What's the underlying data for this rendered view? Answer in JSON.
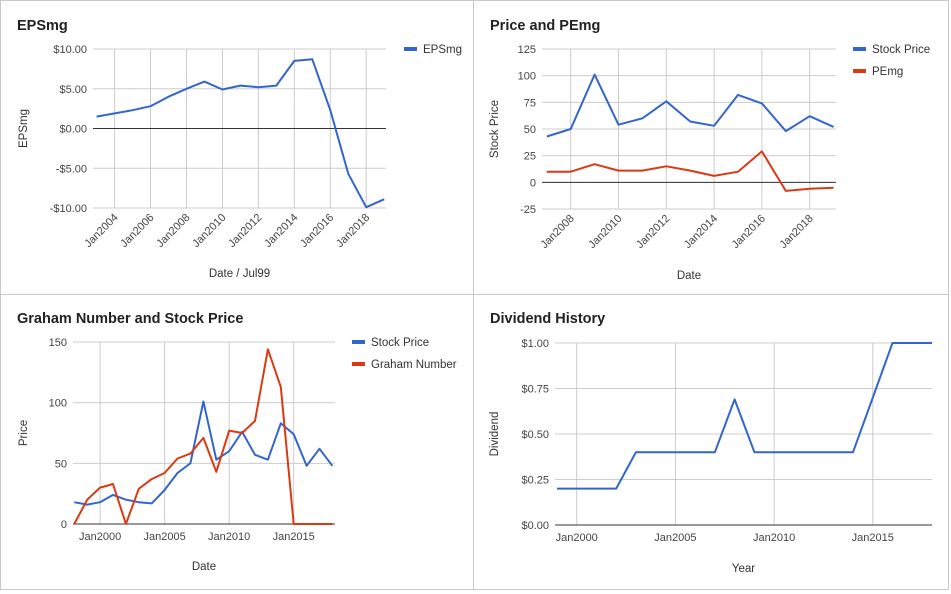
{
  "chart_data": [
    {
      "type": "line",
      "title": "EPSmg",
      "xlabel": "Date / Jul99",
      "ylabel": "EPSmg",
      "x_tick_labels": [
        "Jan2004",
        "Jan2006",
        "Jan2008",
        "Jan2010",
        "Jan2012",
        "Jan2014",
        "Jan2016",
        "Jan2018"
      ],
      "y_tick_labels": [
        "$10.00",
        "$5.00",
        "$0.00",
        "-$5.00",
        "-$10.00"
      ],
      "ylim": [
        -10,
        10
      ],
      "xlim": [
        2002.8,
        2019.1
      ],
      "zero_line": true,
      "grid": true,
      "legend_position": "top-right",
      "series": [
        {
          "name": "EPSmg",
          "color": "#3366cc",
          "x": [
            2003.0,
            2004.0,
            2005.0,
            2006.0,
            2007.0,
            2008.0,
            2009.0,
            2010.0,
            2011.0,
            2012.0,
            2013.0,
            2014.0,
            2015.0,
            2016.0,
            2017.0,
            2018.0,
            2019.0
          ],
          "values": [
            1.5,
            1.9,
            2.3,
            2.8,
            4.0,
            5.0,
            5.9,
            4.9,
            5.4,
            5.2,
            5.4,
            8.5,
            8.7,
            2.3,
            -5.7,
            -9.9,
            -8.9
          ]
        }
      ]
    },
    {
      "type": "line",
      "title": "Price and PEmg",
      "xlabel": "Date",
      "ylabel": "Stock Price",
      "x_tick_labels": [
        "Jan2008",
        "Jan2010",
        "Jan2012",
        "Jan2014",
        "Jan2016",
        "Jan2018"
      ],
      "y_tick_labels": [
        "125",
        "100",
        "75",
        "50",
        "25",
        "0",
        "-25"
      ],
      "ylim": [
        -25,
        125
      ],
      "xlim": [
        2006.8,
        2019.1
      ],
      "zero_line": true,
      "grid": true,
      "legend_position": "top-right",
      "series": [
        {
          "name": "Stock Price",
          "color": "#3366cc",
          "x": [
            2007,
            2008,
            2009,
            2010,
            2011,
            2012,
            2013,
            2014,
            2015,
            2016,
            2017,
            2018,
            2019
          ],
          "values": [
            43,
            50,
            101,
            54,
            60,
            76,
            57,
            53,
            82,
            74,
            48,
            62,
            52
          ]
        },
        {
          "name": "PEmg",
          "color": "#dc3912",
          "x": [
            2007,
            2008,
            2009,
            2010,
            2011,
            2012,
            2013,
            2014,
            2015,
            2016,
            2017,
            2018,
            2019
          ],
          "values": [
            10,
            10,
            17,
            11,
            11,
            15,
            11,
            6,
            10,
            29,
            -8,
            -6,
            -5
          ]
        }
      ]
    },
    {
      "type": "line",
      "title": "Graham Number and Stock Price",
      "xlabel": "Date",
      "ylabel": "Price",
      "x_tick_labels": [
        "Jan2000",
        "Jan2005",
        "Jan2010",
        "Jan2015"
      ],
      "y_tick_labels": [
        "150",
        "100",
        "50",
        "0"
      ],
      "ylim": [
        0,
        150
      ],
      "xlim": [
        1997.9,
        2018.2
      ],
      "grid": true,
      "legend_position": "top-right",
      "series": [
        {
          "name": "Stock Price",
          "color": "#3366cc",
          "x": [
            1998,
            1999,
            2000,
            2001,
            2002,
            2003,
            2004,
            2005,
            2006,
            2007,
            2008,
            2009,
            2010,
            2011,
            2012,
            2013,
            2014,
            2015,
            2016,
            2017,
            2018
          ],
          "values": [
            18,
            16,
            18,
            24,
            20,
            18,
            17,
            28,
            42,
            50,
            101,
            53,
            60,
            76,
            57,
            53,
            83,
            74,
            48,
            62,
            48
          ]
        },
        {
          "name": "Graham Number",
          "color": "#dc3912",
          "x": [
            1998,
            1999,
            2000,
            2001,
            2002,
            2003,
            2004,
            2005,
            2006,
            2007,
            2008,
            2009,
            2010,
            2011,
            2012,
            2013,
            2014,
            2015,
            2016,
            2017,
            2018
          ],
          "values": [
            0,
            20,
            30,
            33,
            0,
            29,
            37,
            42,
            54,
            58,
            71,
            43,
            77,
            75,
            85,
            144,
            113,
            0,
            0,
            0,
            0
          ]
        }
      ]
    },
    {
      "type": "line",
      "title": "Dividend History",
      "xlabel": "Year",
      "ylabel": "Dividend",
      "x_tick_labels": [
        "Jan2000",
        "Jan2005",
        "Jan2010",
        "Jan2015"
      ],
      "y_tick_labels": [
        "$1.00",
        "$0.75",
        "$0.50",
        "$0.25",
        "$0.00"
      ],
      "ylim": [
        0,
        1
      ],
      "xlim": [
        1998.9,
        2018.0
      ],
      "grid": true,
      "series": [
        {
          "color": "#3366cc",
          "x": [
            1999,
            2000,
            2001,
            2002,
            2003,
            2004,
            2005,
            2006,
            2007,
            2008,
            2009,
            2010,
            2011,
            2012,
            2013,
            2014,
            2015,
            2016,
            2017,
            2018
          ],
          "values": [
            0.2,
            0.2,
            0.2,
            0.2,
            0.4,
            0.4,
            0.4,
            0.4,
            0.4,
            0.69,
            0.4,
            0.4,
            0.4,
            0.4,
            0.4,
            0.4,
            0.7,
            1.0,
            1.0,
            1.0
          ]
        }
      ]
    }
  ]
}
